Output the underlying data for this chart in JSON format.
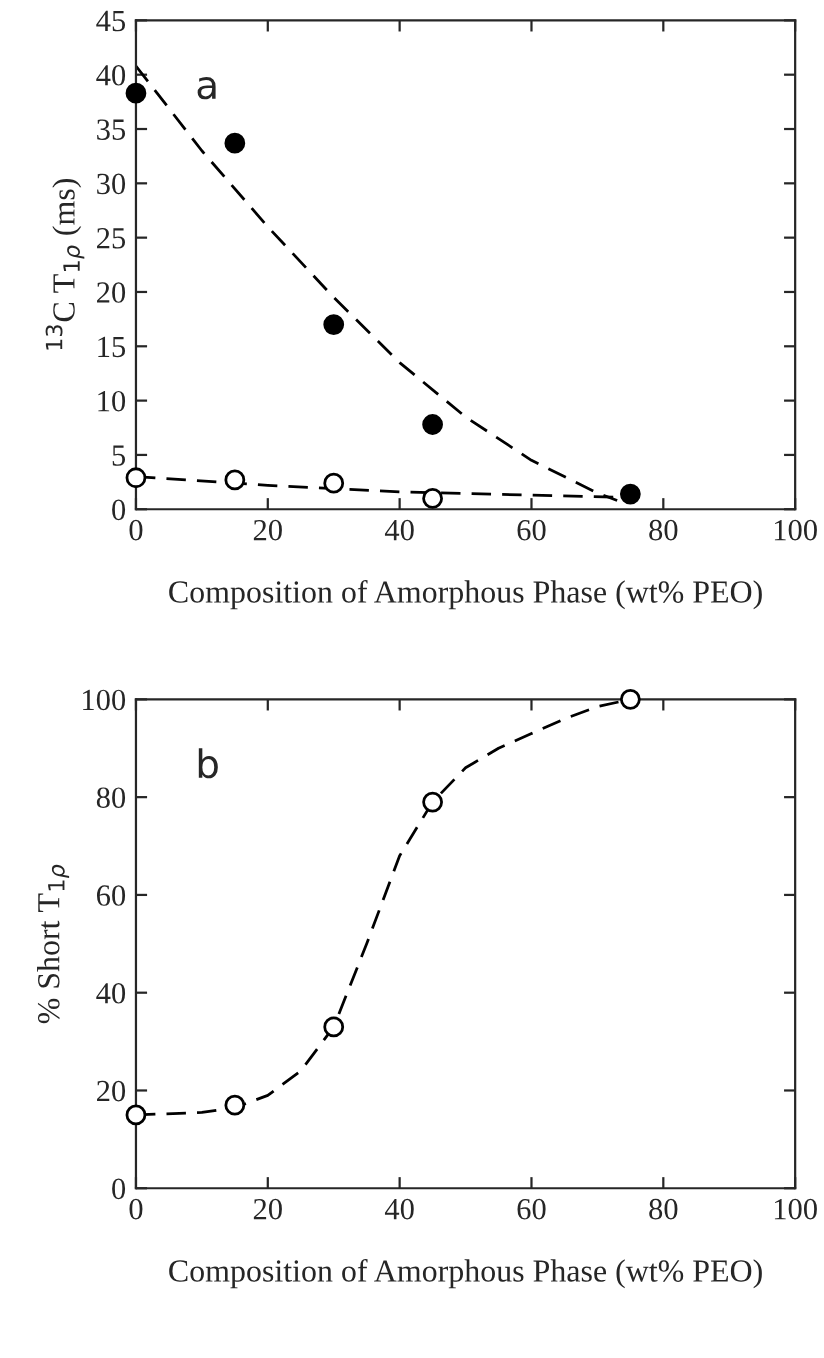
{
  "chart_data": [
    {
      "type": "scatter",
      "xlabel": "Composition of Amorphous Phase (wt% PEO)",
      "ylabel": "$^{13}$C T$_{1ρ}$ (ms)",
      "annotations": [
        "a"
      ],
      "xlim": [
        0,
        100
      ],
      "ylim": [
        0,
        45
      ],
      "xticks": [
        0,
        20,
        40,
        60,
        80,
        100
      ],
      "yticks": [
        0,
        5,
        10,
        15,
        20,
        25,
        30,
        35,
        40,
        45
      ],
      "series": [
        {
          "type": "line",
          "color": "#000000",
          "line_style": "dashed",
          "marker": "none",
          "x": [
            0,
            10,
            20,
            30,
            40,
            50,
            60,
            70,
            73
          ],
          "values": [
            40.8,
            33,
            26,
            19.5,
            13.5,
            8.5,
            4.5,
            1.5,
            0.8
          ]
        },
        {
          "type": "line",
          "color": "#000000",
          "line_style": "dashed",
          "marker": "none",
          "x": [
            0,
            20,
            40,
            60,
            73
          ],
          "values": [
            3.0,
            2.2,
            1.6,
            1.3,
            1.1
          ]
        },
        {
          "color": "#000000",
          "marker": "circle",
          "x": [
            0,
            15,
            30,
            45,
            75
          ],
          "values": [
            38.3,
            33.7,
            17,
            7.8,
            1.4
          ]
        },
        {
          "color": "#ffffff",
          "marker": "circle",
          "x": [
            0,
            15,
            30,
            45
          ],
          "values": [
            2.9,
            2.7,
            2.4,
            1.0
          ]
        }
      ]
    },
    {
      "type": "scatter",
      "xlabel": "Composition of Amorphous Phase (wt% PEO)",
      "ylabel": "% Short T$_{1ρ}$",
      "annotations": [
        "b"
      ],
      "xlim": [
        0,
        100
      ],
      "ylim": [
        0,
        100
      ],
      "xticks": [
        0,
        20,
        40,
        60,
        80,
        100
      ],
      "yticks": [
        0,
        20,
        40,
        60,
        80,
        100
      ],
      "series": [
        {
          "type": "line",
          "color": "#000000",
          "line_style": "dashed",
          "marker": "none",
          "x": [
            0,
            10,
            15,
            20,
            25,
            30,
            35,
            40,
            45,
            50,
            55,
            60,
            65,
            70,
            75
          ],
          "values": [
            15,
            15.5,
            16.5,
            19,
            24,
            33,
            50,
            68,
            79,
            86,
            90,
            93,
            96,
            98.5,
            100
          ]
        },
        {
          "color": "#ffffff",
          "marker": "circle",
          "x": [
            0,
            15,
            30,
            45,
            75
          ],
          "values": [
            15,
            17,
            33,
            79,
            100
          ]
        }
      ]
    }
  ]
}
